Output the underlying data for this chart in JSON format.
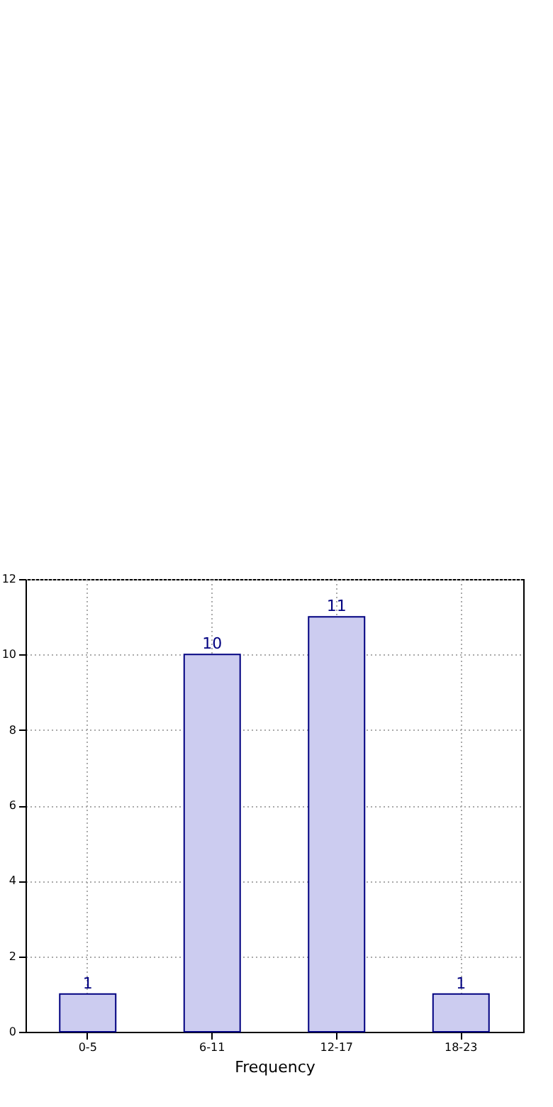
{
  "chart_data": {
    "type": "bar",
    "xlabel": "Frequency",
    "categories": [
      "0-5",
      "6-11",
      "12-17",
      "18-23"
    ],
    "series": [
      {
        "color": "#ccccf0",
        "values": [
          1,
          10,
          11,
          1
        ]
      }
    ],
    "ylim": [
      0,
      12
    ],
    "yticks": [
      0,
      2,
      4,
      6,
      8,
      10,
      12
    ],
    "grid": true,
    "data_labels": true
  }
}
